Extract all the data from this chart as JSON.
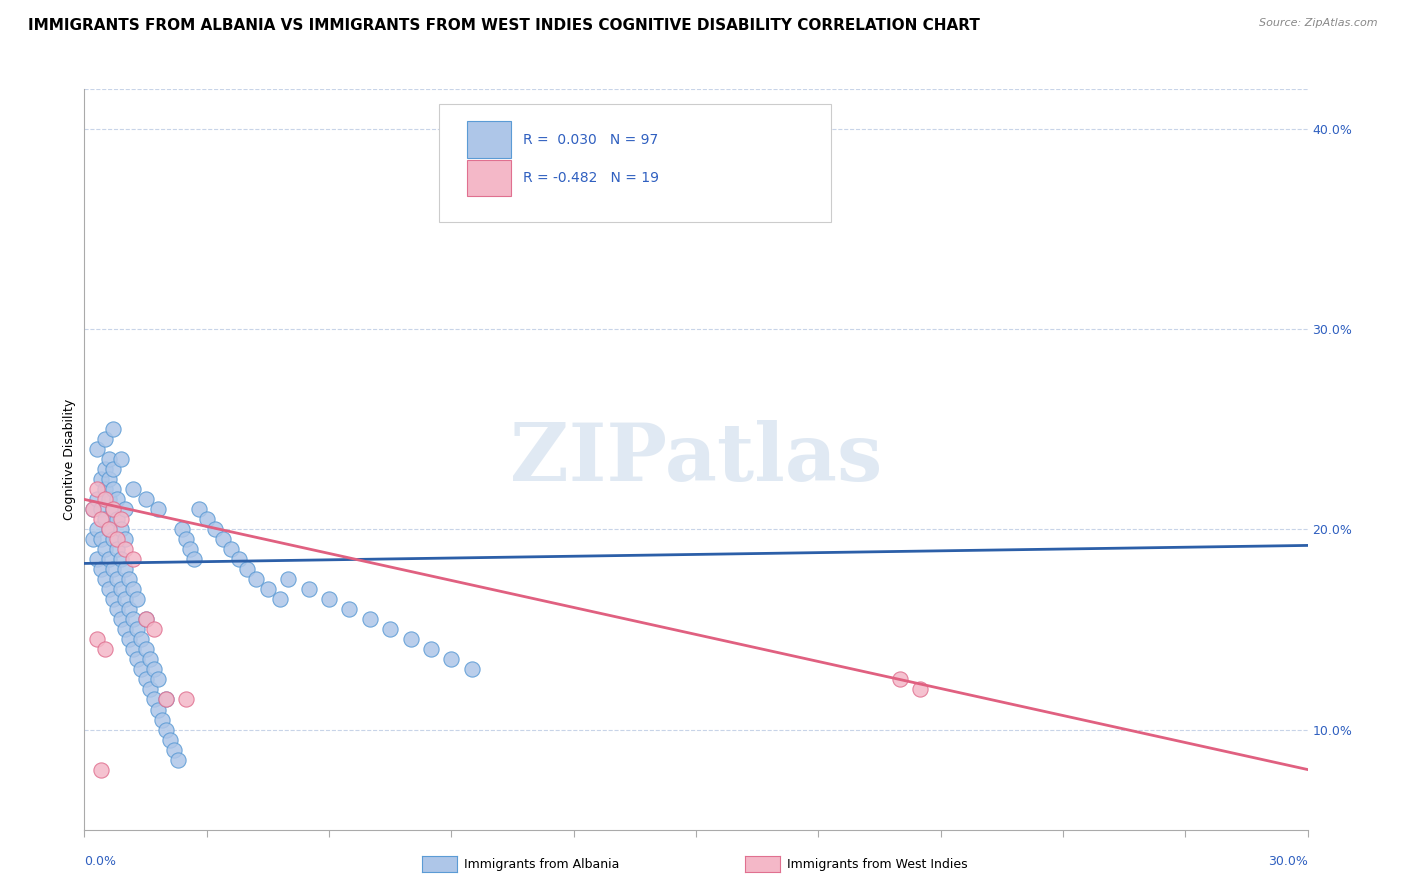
{
  "title": "IMMIGRANTS FROM ALBANIA VS IMMIGRANTS FROM WEST INDIES COGNITIVE DISABILITY CORRELATION CHART",
  "source": "Source: ZipAtlas.com",
  "ylabel": "Cognitive Disability",
  "xlim": [
    0.0,
    0.3
  ],
  "ylim": [
    0.05,
    0.42
  ],
  "yticks": [
    0.1,
    0.2,
    0.3,
    0.4
  ],
  "ytick_labels": [
    "10.0%",
    "20.0%",
    "30.0%",
    "40.0%"
  ],
  "albania_fill": "#aec6e8",
  "albania_edge": "#5b9bd5",
  "west_indies_fill": "#f4b8c8",
  "west_indies_edge": "#e07090",
  "albania_trend_color": "#2c5fa8",
  "west_indies_trend_color": "#e06080",
  "legend_text_color": "#3060c0",
  "R_albania": 0.03,
  "N_albania": 97,
  "R_west_indies": -0.482,
  "N_west_indies": 19,
  "watermark": "ZIPatlas",
  "background_color": "#ffffff",
  "albania_scatter_x": [
    0.002,
    0.002,
    0.003,
    0.003,
    0.003,
    0.004,
    0.004,
    0.004,
    0.004,
    0.005,
    0.005,
    0.005,
    0.005,
    0.005,
    0.006,
    0.006,
    0.006,
    0.006,
    0.006,
    0.006,
    0.007,
    0.007,
    0.007,
    0.007,
    0.007,
    0.007,
    0.008,
    0.008,
    0.008,
    0.008,
    0.008,
    0.009,
    0.009,
    0.009,
    0.009,
    0.01,
    0.01,
    0.01,
    0.01,
    0.01,
    0.011,
    0.011,
    0.011,
    0.012,
    0.012,
    0.012,
    0.013,
    0.013,
    0.013,
    0.014,
    0.014,
    0.015,
    0.015,
    0.015,
    0.016,
    0.016,
    0.017,
    0.017,
    0.018,
    0.018,
    0.019,
    0.02,
    0.02,
    0.021,
    0.022,
    0.023,
    0.024,
    0.025,
    0.026,
    0.027,
    0.028,
    0.03,
    0.032,
    0.034,
    0.036,
    0.038,
    0.04,
    0.042,
    0.045,
    0.048,
    0.05,
    0.055,
    0.06,
    0.065,
    0.07,
    0.075,
    0.08,
    0.085,
    0.09,
    0.095,
    0.003,
    0.005,
    0.007,
    0.009,
    0.012,
    0.015,
    0.018
  ],
  "albania_scatter_y": [
    0.195,
    0.21,
    0.185,
    0.2,
    0.215,
    0.18,
    0.195,
    0.21,
    0.225,
    0.175,
    0.19,
    0.205,
    0.22,
    0.23,
    0.17,
    0.185,
    0.2,
    0.215,
    0.225,
    0.235,
    0.165,
    0.18,
    0.195,
    0.21,
    0.22,
    0.23,
    0.16,
    0.175,
    0.19,
    0.205,
    0.215,
    0.155,
    0.17,
    0.185,
    0.2,
    0.15,
    0.165,
    0.18,
    0.195,
    0.21,
    0.145,
    0.16,
    0.175,
    0.14,
    0.155,
    0.17,
    0.135,
    0.15,
    0.165,
    0.13,
    0.145,
    0.125,
    0.14,
    0.155,
    0.12,
    0.135,
    0.115,
    0.13,
    0.11,
    0.125,
    0.105,
    0.1,
    0.115,
    0.095,
    0.09,
    0.085,
    0.2,
    0.195,
    0.19,
    0.185,
    0.21,
    0.205,
    0.2,
    0.195,
    0.19,
    0.185,
    0.18,
    0.175,
    0.17,
    0.165,
    0.175,
    0.17,
    0.165,
    0.16,
    0.155,
    0.15,
    0.145,
    0.14,
    0.135,
    0.13,
    0.24,
    0.245,
    0.25,
    0.235,
    0.22,
    0.215,
    0.21
  ],
  "west_indies_scatter_x": [
    0.002,
    0.003,
    0.004,
    0.005,
    0.006,
    0.007,
    0.008,
    0.009,
    0.01,
    0.012,
    0.015,
    0.017,
    0.02,
    0.025,
    0.003,
    0.005,
    0.2,
    0.205,
    0.004
  ],
  "west_indies_scatter_y": [
    0.21,
    0.22,
    0.205,
    0.215,
    0.2,
    0.21,
    0.195,
    0.205,
    0.19,
    0.185,
    0.155,
    0.15,
    0.115,
    0.115,
    0.145,
    0.14,
    0.125,
    0.12,
    0.08
  ],
  "albania_trend_x0": 0.0,
  "albania_trend_y0": 0.183,
  "albania_trend_x1": 0.3,
  "albania_trend_y1": 0.192,
  "wi_trend_x0": 0.0,
  "wi_trend_y0": 0.215,
  "wi_trend_x1": 0.3,
  "wi_trend_y1": 0.08,
  "title_fontsize": 11,
  "axis_label_fontsize": 9,
  "tick_fontsize": 9
}
